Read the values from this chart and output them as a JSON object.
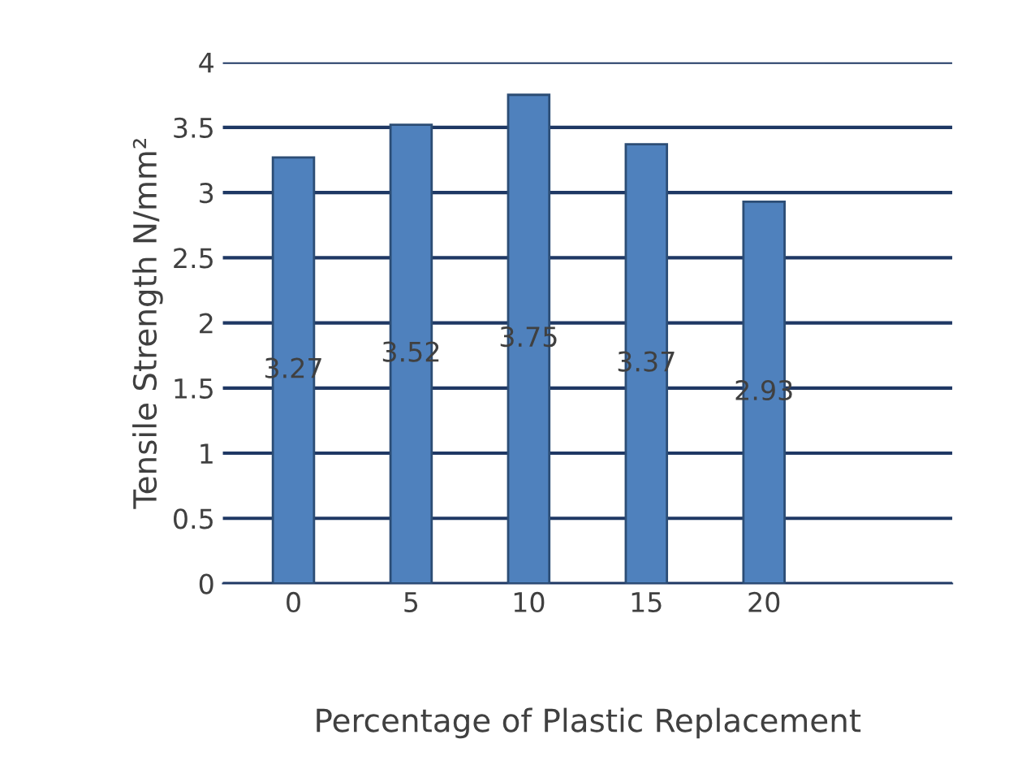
{
  "chart_data": {
    "type": "bar",
    "xlabel": "Percentage of Plastic Replacement",
    "ylabel": "Tensile Strength N/mm²",
    "categories": [
      "0",
      "5",
      "10",
      "15",
      "20"
    ],
    "values": [
      3.27,
      3.52,
      3.75,
      3.37,
      2.93
    ],
    "color": "#4f81bd",
    "ylim": [
      0,
      4
    ],
    "yticks": [
      0,
      0.5,
      1,
      1.5,
      2,
      2.5,
      3,
      3.5,
      4
    ],
    "grid": "y",
    "data_labels": true
  }
}
